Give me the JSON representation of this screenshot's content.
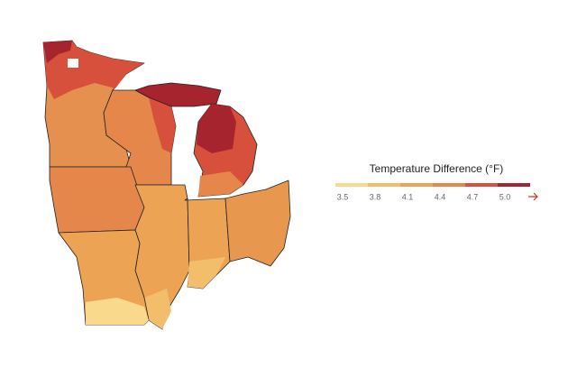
{
  "legend": {
    "title": "Temperature Difference (°F)",
    "ticks": [
      3.5,
      3.8,
      4.1,
      4.4,
      4.7,
      {
        "value": 5.0,
        "label": "5.0"
      }
    ],
    "colors": [
      "#f9d98b",
      "#f3be6b",
      "#eca454",
      "#e5874a",
      "#d8503f",
      "#a6242e"
    ]
  }
}
